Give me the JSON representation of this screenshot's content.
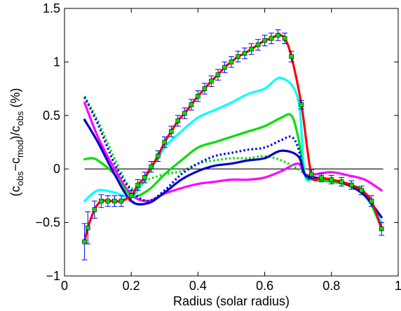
{
  "chart_data": {
    "type": "line",
    "xlabel": "Radius (solar radius)",
    "ylabel": {
      "parts": [
        "(c",
        "obs",
        "−c",
        "mod",
        ")/c",
        "obs",
        " (%)"
      ],
      "sub": [
        false,
        true,
        false,
        true,
        false,
        true,
        false
      ]
    },
    "xlim": [
      0,
      1
    ],
    "ylim": [
      -1,
      1.5
    ],
    "xticks": [
      0,
      0.2,
      0.4,
      0.6,
      0.8,
      1
    ],
    "xtick_labels": [
      "0",
      "0.2",
      "0.4",
      "0.6",
      "0.8",
      "1"
    ],
    "yticks": [
      -1,
      -0.5,
      0,
      0.5,
      1,
      1.5
    ],
    "ytick_labels": [
      "−1",
      "−0.5",
      "0",
      "0.5",
      "1",
      "1.5"
    ],
    "grid": false,
    "legend": "none",
    "reference_line": {
      "y": 0,
      "color": "#000000"
    },
    "series": [
      {
        "color": "#ff00ff",
        "style": "solid",
        "x": [
          0.06,
          0.1,
          0.15,
          0.2,
          0.25,
          0.3,
          0.35,
          0.4,
          0.45,
          0.5,
          0.55,
          0.6,
          0.65,
          0.7,
          0.72,
          0.75,
          0.8,
          0.85,
          0.9,
          0.95
        ],
        "y": [
          0.62,
          0.3,
          0.0,
          -0.24,
          -0.3,
          -0.23,
          -0.18,
          -0.14,
          -0.12,
          -0.1,
          -0.1,
          -0.08,
          -0.02,
          0.05,
          -0.05,
          -0.05,
          -0.03,
          -0.06,
          -0.1,
          -0.2
        ]
      },
      {
        "color": "#00ffff",
        "style": "solid",
        "x": [
          0.06,
          0.1,
          0.15,
          0.2,
          0.25,
          0.3,
          0.35,
          0.4,
          0.45,
          0.5,
          0.55,
          0.6,
          0.65,
          0.7,
          0.72,
          0.75,
          0.8,
          0.85,
          0.9,
          0.95
        ],
        "y": [
          -0.3,
          -0.2,
          -0.22,
          -0.26,
          -0.05,
          0.2,
          0.35,
          0.48,
          0.55,
          0.62,
          0.7,
          0.75,
          0.85,
          0.65,
          -0.05,
          -0.08,
          -0.1,
          -0.15,
          -0.25,
          -0.5
        ]
      },
      {
        "color": "#00e000",
        "style": "solid",
        "x": [
          0.06,
          0.08,
          0.1,
          0.15,
          0.2,
          0.25,
          0.3,
          0.35,
          0.4,
          0.45,
          0.5,
          0.55,
          0.6,
          0.65,
          0.68,
          0.7,
          0.72,
          0.75,
          0.8,
          0.85,
          0.9,
          0.95
        ],
        "y": [
          0.09,
          0.1,
          0.08,
          -0.05,
          -0.25,
          -0.2,
          -0.05,
          0.08,
          0.2,
          0.25,
          0.3,
          0.35,
          0.4,
          0.48,
          0.5,
          0.3,
          -0.05,
          -0.1,
          -0.12,
          -0.15,
          -0.22,
          -0.55
        ]
      },
      {
        "color": "#00e000",
        "style": "dotted",
        "x": [
          0.06,
          0.1,
          0.15,
          0.2,
          0.25,
          0.3,
          0.35,
          0.4,
          0.45,
          0.5,
          0.55,
          0.6,
          0.65,
          0.7,
          0.72,
          0.75
        ],
        "y": [
          0.68,
          0.45,
          0.1,
          -0.18,
          -0.1,
          -0.05,
          -0.02,
          0.05,
          0.08,
          0.1,
          0.1,
          0.12,
          0.08,
          0.0,
          -0.05,
          -0.08
        ]
      },
      {
        "color": "#0000ff",
        "style": "dotted",
        "x": [
          0.06,
          0.1,
          0.15,
          0.2,
          0.25,
          0.3,
          0.35,
          0.4,
          0.45,
          0.5,
          0.55,
          0.6,
          0.65,
          0.68,
          0.7,
          0.72,
          0.75
        ],
        "y": [
          0.67,
          0.42,
          0.05,
          -0.2,
          -0.3,
          -0.2,
          -0.05,
          0.05,
          0.12,
          0.15,
          0.18,
          0.2,
          0.27,
          0.3,
          0.2,
          -0.05,
          -0.1
        ]
      },
      {
        "color": "#0000cc",
        "style": "solid",
        "x": [
          0.06,
          0.1,
          0.15,
          0.2,
          0.25,
          0.3,
          0.35,
          0.4,
          0.45,
          0.5,
          0.55,
          0.6,
          0.65,
          0.7,
          0.72,
          0.75,
          0.8,
          0.85,
          0.9,
          0.95
        ],
        "y": [
          0.46,
          0.25,
          -0.05,
          -0.3,
          -0.32,
          -0.22,
          -0.1,
          -0.02,
          0.03,
          0.05,
          0.08,
          0.1,
          0.17,
          0.12,
          -0.05,
          -0.08,
          -0.1,
          -0.15,
          -0.25,
          -0.45
        ]
      },
      {
        "color": "#ff0000",
        "style": "solid",
        "markers": "square",
        "marker_fill": "#00dd00",
        "error_color": "#0000ff",
        "x": [
          0.06,
          0.07,
          0.09,
          0.11,
          0.13,
          0.15,
          0.17,
          0.2,
          0.22,
          0.24,
          0.26,
          0.28,
          0.3,
          0.32,
          0.34,
          0.36,
          0.38,
          0.4,
          0.42,
          0.44,
          0.46,
          0.48,
          0.5,
          0.52,
          0.54,
          0.56,
          0.58,
          0.6,
          0.62,
          0.64,
          0.66,
          0.68,
          0.71,
          0.74,
          0.77,
          0.8,
          0.83,
          0.86,
          0.89,
          0.92,
          0.95
        ],
        "y": [
          -0.68,
          -0.55,
          -0.38,
          -0.3,
          -0.3,
          -0.3,
          -0.3,
          -0.25,
          -0.15,
          -0.08,
          0.02,
          0.12,
          0.25,
          0.35,
          0.45,
          0.52,
          0.6,
          0.68,
          0.75,
          0.82,
          0.88,
          0.95,
          1.0,
          1.05,
          1.08,
          1.12,
          1.16,
          1.2,
          1.22,
          1.25,
          1.22,
          1.05,
          0.6,
          -0.05,
          -0.08,
          -0.1,
          -0.12,
          -0.15,
          -0.2,
          -0.3,
          -0.56
        ],
        "err": [
          0.17,
          0.15,
          0.08,
          0.06,
          0.05,
          0.05,
          0.05,
          0.05,
          0.05,
          0.05,
          0.05,
          0.05,
          0.05,
          0.05,
          0.05,
          0.05,
          0.05,
          0.05,
          0.05,
          0.05,
          0.05,
          0.05,
          0.05,
          0.05,
          0.05,
          0.05,
          0.05,
          0.05,
          0.05,
          0.05,
          0.05,
          0.05,
          0.04,
          0.04,
          0.04,
          0.04,
          0.04,
          0.04,
          0.04,
          0.05,
          0.06
        ]
      }
    ]
  }
}
